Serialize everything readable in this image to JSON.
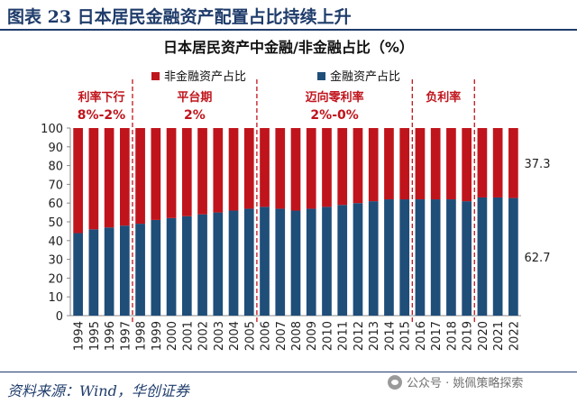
{
  "figure_title": "图表 23  日本居民金融资产配置占比持续上升",
  "source": "资料来源：Wind，华创证券",
  "watermark": "公众号 · 姚佩策略探索",
  "colors": {
    "non_financial": "#c0141c",
    "financial": "#1f4e79",
    "annotation": "#c0141c",
    "axis_text": "#222222",
    "title_blue": "#1f3c6b"
  },
  "chart_data": {
    "type": "bar",
    "stacked": true,
    "title": "日本居民资产中金融/非金融占比（%）",
    "categories": [
      "1994",
      "1995",
      "1996",
      "1997",
      "1998",
      "1999",
      "2000",
      "2001",
      "2002",
      "2003",
      "2004",
      "2005",
      "2006",
      "2007",
      "2008",
      "2009",
      "2010",
      "2011",
      "2012",
      "2013",
      "2014",
      "2015",
      "2016",
      "2017",
      "2018",
      "2019",
      "2020",
      "2021",
      "2022"
    ],
    "series": [
      {
        "name": "金融资产占比",
        "values": [
          44,
          46,
          47,
          48,
          49,
          51,
          52,
          53,
          54,
          55,
          56,
          57,
          58,
          57,
          56,
          57,
          58,
          59,
          60,
          61,
          62,
          62,
          62,
          62,
          62,
          61,
          63,
          63,
          62.7
        ]
      },
      {
        "name": "非金融资产占比",
        "values": [
          56,
          54,
          53,
          52,
          51,
          49,
          48,
          47,
          46,
          45,
          44,
          43,
          42,
          43,
          44,
          43,
          42,
          41,
          40,
          39,
          38,
          38,
          38,
          38,
          38,
          39,
          37,
          37,
          37.3
        ]
      }
    ],
    "legend_order": [
      "非金融资产占比",
      "金融资产占比"
    ],
    "legend_position": "top",
    "ylim": [
      0,
      100
    ],
    "yticks": [
      0,
      10,
      20,
      30,
      40,
      50,
      60,
      70,
      80,
      90,
      100
    ],
    "xlabel": "",
    "ylabel": "",
    "data_labels": [
      {
        "series": "非金融资产占比",
        "category": "2022",
        "text": "37.3"
      },
      {
        "series": "金融资产占比",
        "category": "2022",
        "text": "62.7"
      }
    ],
    "periods": [
      {
        "start": "1994",
        "end": "1997",
        "label_line1": "利率下行",
        "label_line2": "8%-2%"
      },
      {
        "start": "1998",
        "end": "2005",
        "label_line1": "平台期",
        "label_line2": "2%"
      },
      {
        "start": "2006",
        "end": "2015",
        "label_line1": "迈向零利率",
        "label_line2": "2%-0%"
      },
      {
        "start": "2016",
        "end": "2019",
        "label_line1": "负利率",
        "label_line2": ""
      }
    ],
    "dividers_after": [
      "1997",
      "2005",
      "2015",
      "2019"
    ]
  }
}
